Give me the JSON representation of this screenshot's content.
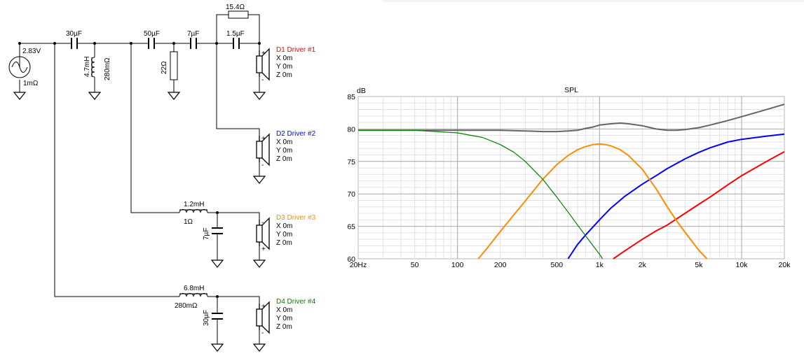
{
  "schematic": {
    "source": {
      "voltage": "2.83V",
      "resistance": "1mΩ"
    },
    "components": {
      "c1": "30µF",
      "l1": "4.7mH",
      "l1_r": "280mΩ",
      "c2": "50µF",
      "r1": "22Ω",
      "c3": "7µF",
      "c4": "1.5µF",
      "r2": "15.4Ω",
      "l2": "1.2mH",
      "l2_r": "1Ω",
      "c5": "7µF",
      "l3": "6.8mH",
      "l3_r": "280mΩ",
      "c6": "30µF"
    },
    "drivers": [
      {
        "name": "D1 Driver #1",
        "color": "#ff0000",
        "x": "X 0m",
        "y": "Y 0m",
        "z": "Z 0m",
        "polarity": "normal"
      },
      {
        "name": "D2 Driver #2",
        "color": "#0000ff",
        "x": "X 0m",
        "y": "Y 0m",
        "z": "Z 0m",
        "polarity": "normal"
      },
      {
        "name": "D3 Driver #3",
        "color": "#ff8c00",
        "x": "X 0m",
        "y": "Y 0m",
        "z": "Z 0m",
        "polarity": "inverted"
      },
      {
        "name": "D4 Driver #4",
        "color": "#008000",
        "x": "X 0m",
        "y": "Y 0m",
        "z": "Z 0m",
        "polarity": "normal"
      }
    ]
  },
  "chart_data": {
    "type": "line",
    "title": "SPL",
    "ylabel": "dB",
    "xlabel": "",
    "xscale": "log",
    "xlim": [
      20,
      20000
    ],
    "ylim": [
      60,
      85
    ],
    "xticks": [
      {
        "value": 20,
        "label": "20Hz"
      },
      {
        "value": 50,
        "label": "50"
      },
      {
        "value": 100,
        "label": "100"
      },
      {
        "value": 200,
        "label": "200"
      },
      {
        "value": 500,
        "label": "500"
      },
      {
        "value": 1000,
        "label": "1k"
      },
      {
        "value": 2000,
        "label": "2k"
      },
      {
        "value": 5000,
        "label": "5k"
      },
      {
        "value": 10000,
        "label": "10k"
      },
      {
        "value": 20000,
        "label": "20k"
      }
    ],
    "yticks": [
      60,
      65,
      70,
      75,
      80,
      85
    ],
    "grid": true,
    "series": [
      {
        "color": "#646464",
        "x": [
          20,
          30,
          50,
          80,
          100,
          150,
          200,
          300,
          400,
          500,
          600,
          700,
          800,
          900,
          1000,
          1200,
          1400,
          1600,
          2000,
          2500,
          3000,
          3500,
          4000,
          5000,
          6000,
          8000,
          10000,
          15000,
          20000
        ],
        "y": [
          79.8,
          79.8,
          79.8,
          79.8,
          79.8,
          79.8,
          79.8,
          79.7,
          79.6,
          79.6,
          79.7,
          79.8,
          80.1,
          80.3,
          80.6,
          80.8,
          80.9,
          80.8,
          80.5,
          80.0,
          79.8,
          79.8,
          79.9,
          80.2,
          80.6,
          81.3,
          81.9,
          83.0,
          83.8
        ]
      },
      {
        "color": "#ff0000",
        "x": [
          1250,
          1500,
          2000,
          2500,
          3000,
          4000,
          5000,
          6000,
          8000,
          10000,
          15000,
          20000
        ],
        "y": [
          60.0,
          61.2,
          63.0,
          64.3,
          65.2,
          67.0,
          68.4,
          69.5,
          71.4,
          72.8,
          75.0,
          76.5
        ]
      },
      {
        "color": "#0000ff",
        "x": [
          600,
          700,
          800,
          1000,
          1200,
          1500,
          2000,
          2500,
          3000,
          4000,
          5000,
          6000,
          8000,
          10000,
          15000,
          20000
        ],
        "y": [
          60.0,
          62.2,
          63.7,
          66.0,
          67.8,
          69.6,
          71.5,
          72.8,
          73.9,
          75.4,
          76.4,
          77.1,
          78.0,
          78.4,
          78.9,
          79.2
        ]
      },
      {
        "color": "#ff8c00",
        "x": [
          140,
          160,
          200,
          250,
          300,
          400,
          500,
          600,
          700,
          800,
          900,
          1000,
          1100,
          1200,
          1400,
          1600,
          2000,
          2500,
          3000,
          3500,
          4000,
          5000,
          5700
        ],
        "y": [
          60.0,
          61.5,
          64.2,
          66.8,
          68.9,
          72.3,
          74.5,
          75.9,
          76.8,
          77.3,
          77.6,
          77.7,
          77.6,
          77.4,
          76.8,
          75.9,
          73.8,
          70.8,
          68.0,
          65.8,
          64.1,
          61.3,
          60.0
        ]
      },
      {
        "color": "#008000",
        "x": [
          20,
          50,
          100,
          150,
          200,
          250,
          300,
          400,
          500,
          600,
          700,
          800,
          900,
          1000,
          1050
        ],
        "y": [
          79.8,
          79.8,
          79.4,
          78.7,
          77.6,
          76.4,
          75.0,
          72.2,
          69.5,
          67.2,
          65.2,
          63.5,
          62.0,
          60.7,
          60.0
        ]
      }
    ]
  }
}
